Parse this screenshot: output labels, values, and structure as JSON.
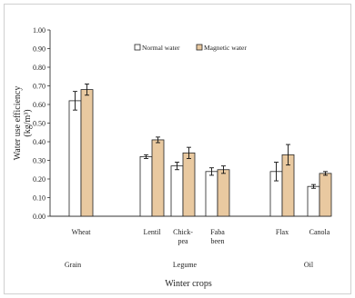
{
  "chart_data": {
    "type": "bar",
    "title": "",
    "ylabel_line1": "Water use efficiency",
    "ylabel_line2": "(kg/m³)",
    "xlabel": "Winter crops",
    "ylim": [
      0,
      1.0
    ],
    "yticks": [
      "0.00",
      "0.10",
      "0.20",
      "0.30",
      "0.40",
      "0.50",
      "0.60",
      "0.70",
      "0.80",
      "0.90",
      "1.00"
    ],
    "legend": {
      "placement": "top-center",
      "entries": [
        "Normal water",
        "Magnetic water"
      ]
    },
    "categories": [
      {
        "label": [
          "Wheat"
        ],
        "group": "Grain"
      },
      {
        "label": [
          "Lentil"
        ],
        "group": "Legume"
      },
      {
        "label": [
          "Chick-",
          "pea"
        ],
        "group": "Legume"
      },
      {
        "label": [
          "Faba",
          "been"
        ],
        "group": "Legume"
      },
      {
        "label": [
          "Flax"
        ],
        "group": "Oil"
      },
      {
        "label": [
          "Canola"
        ],
        "group": "Oil"
      }
    ],
    "groups": [
      "Grain",
      "Legume",
      "Oil"
    ],
    "series": [
      {
        "name": "Normal water",
        "color": "#ffffff",
        "values": [
          0.62,
          0.32,
          0.27,
          0.24,
          0.24,
          0.16
        ],
        "errors": [
          0.05,
          0.01,
          0.02,
          0.02,
          0.05,
          0.01
        ]
      },
      {
        "name": "Magnetic water",
        "color": "#e9c9a0",
        "values": [
          0.68,
          0.41,
          0.34,
          0.25,
          0.33,
          0.23
        ],
        "errors": [
          0.03,
          0.015,
          0.03,
          0.02,
          0.055,
          0.01
        ]
      }
    ]
  }
}
